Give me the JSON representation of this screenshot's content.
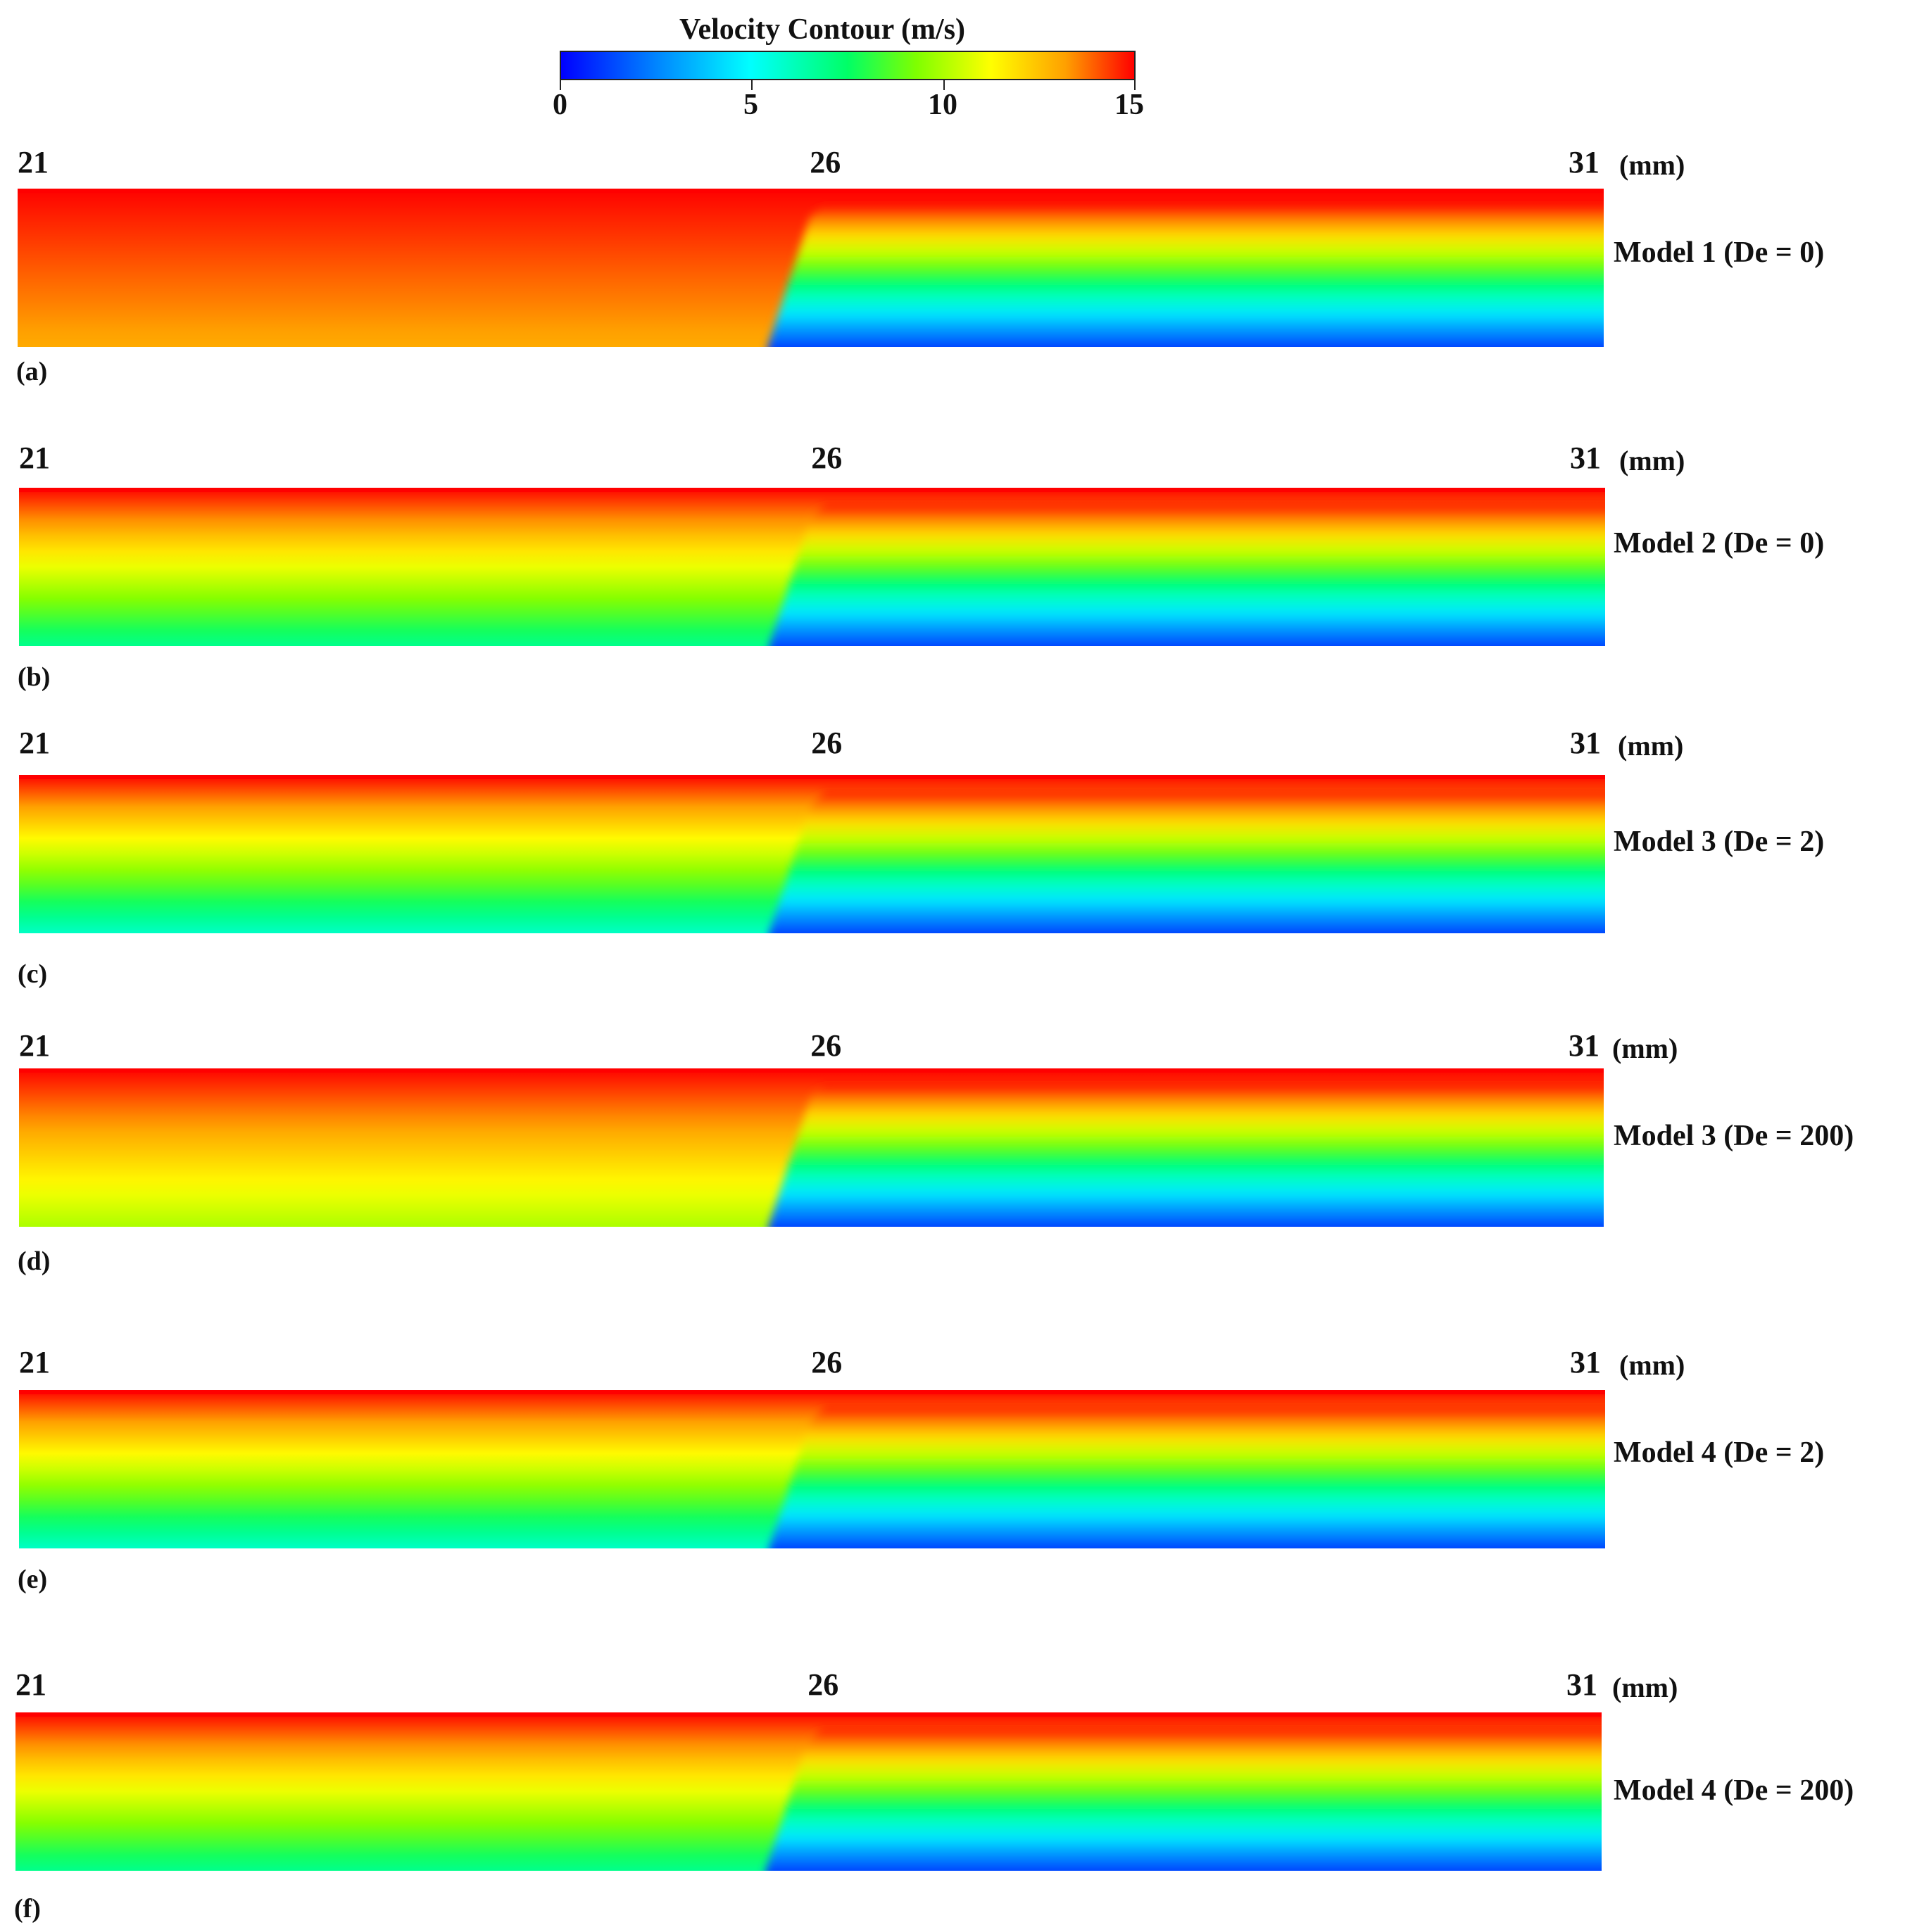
{
  "colorbar": {
    "title": "Velocity Contour (m/s)",
    "ticks": [
      "0",
      "5",
      "10",
      "15"
    ],
    "colors": [
      "#0000ff",
      "#00ffff",
      "#00ff66",
      "#ffff00",
      "#ff0000"
    ]
  },
  "axis": {
    "unit": "(mm)"
  },
  "chart_data": {
    "type": "heatmap",
    "title": "Velocity Contour (m/s)",
    "value_range": [
      0,
      15
    ],
    "colorbar_ticks": [
      0,
      5,
      10,
      15
    ],
    "x_range_mm": [
      21,
      31
    ],
    "x_ticks": [
      "21",
      "26",
      "31"
    ],
    "x_unit": "mm",
    "panels": [
      {
        "label": "(a)",
        "model": "Model 1 (De = 0)",
        "upstream": {
          "top": 15,
          "bottom": 13
        },
        "downstream": {
          "top": 15,
          "bottom": 0
        }
      },
      {
        "label": "(b)",
        "model": "Model 2 (De = 0)",
        "upstream": {
          "top": 15,
          "bottom": 7
        },
        "downstream": {
          "top": 15,
          "bottom": 0
        }
      },
      {
        "label": "(c)",
        "model": "Model 3 (De = 2)",
        "upstream": {
          "top": 15,
          "bottom": 6
        },
        "downstream": {
          "top": 15,
          "bottom": 0
        }
      },
      {
        "label": "(d)",
        "model": "Model 3 (De = 200)",
        "upstream": {
          "top": 15,
          "bottom": 10
        },
        "downstream": {
          "top": 15,
          "bottom": 0
        }
      },
      {
        "label": "(e)",
        "model": "Model 4 (De = 2)",
        "upstream": {
          "top": 15,
          "bottom": 6
        },
        "downstream": {
          "top": 15,
          "bottom": 0
        }
      },
      {
        "label": "(f)",
        "model": "Model 4 (De = 200)",
        "upstream": {
          "top": 15,
          "bottom": 7
        },
        "downstream": {
          "top": 15,
          "bottom": 0
        }
      }
    ]
  }
}
